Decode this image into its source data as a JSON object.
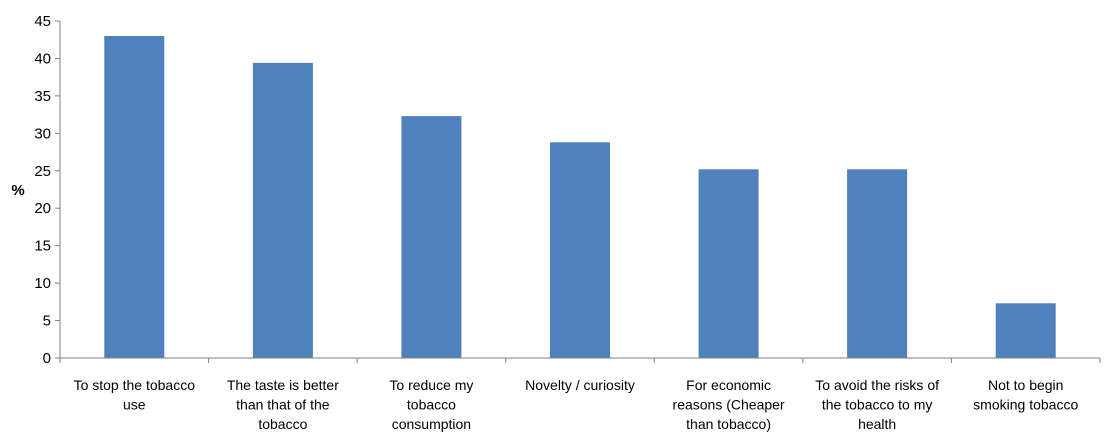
{
  "chart_data": {
    "type": "bar",
    "title": "",
    "xlabel": "",
    "ylabel": "%",
    "ylim": [
      0,
      45
    ],
    "yticks": [
      "0",
      "5",
      "10",
      "15",
      "20",
      "25",
      "30",
      "35",
      "40",
      "45"
    ],
    "grid": false,
    "legend": "none",
    "bar_color": "#4f81bd",
    "categories": [
      [
        "To stop the tobacco",
        "use"
      ],
      [
        "The taste is better",
        "than that of the",
        "tobacco"
      ],
      [
        "To reduce my",
        "tobacco",
        "consumption"
      ],
      [
        "Novelty / curiosity"
      ],
      [
        "For economic",
        "reasons (Cheaper",
        "than tobacco)"
      ],
      [
        "To avoid the risks of",
        "the tobacco to my",
        "health"
      ],
      [
        "Not to begin",
        "smoking tobacco"
      ]
    ],
    "values": [
      43.0,
      39.4,
      32.3,
      28.8,
      25.2,
      25.2,
      7.3
    ]
  }
}
